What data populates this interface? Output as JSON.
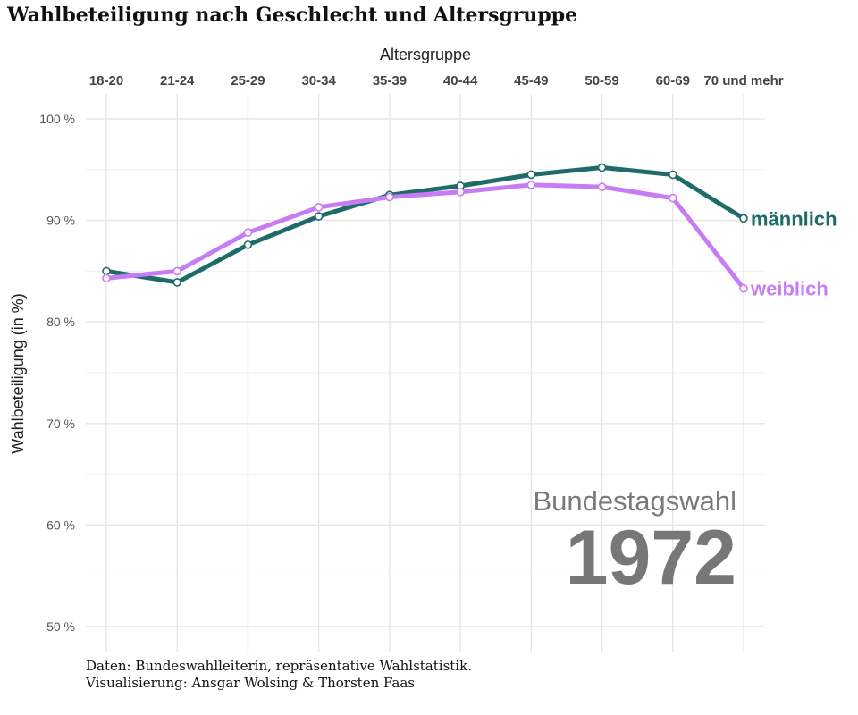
{
  "title": "Wahlbeteiligung nach Geschlecht und Altersgruppe",
  "caption": {
    "line1": "Daten: Bundeswahlleiterin, repräsentative Wahlstatistik.",
    "line2": "Visualisierung: Ansgar Wolsing & Thorsten Faas"
  },
  "chart_data": {
    "type": "line",
    "xlabel": "Altersgruppe",
    "ylabel": "Wahlbeteiligung (in %)",
    "x_axis_position": "top",
    "categories": [
      "18-20",
      "21-24",
      "25-29",
      "30-34",
      "35-39",
      "40-44",
      "45-49",
      "50-59",
      "60-69",
      "70 und mehr"
    ],
    "ylim": [
      48,
      101
    ],
    "yticks": [
      50,
      60,
      70,
      80,
      90,
      100
    ],
    "ytick_labels": [
      "50 %",
      "60 %",
      "70 %",
      "80 %",
      "90 %",
      "100 %"
    ],
    "grid": true,
    "legend": "direct labels at line ends",
    "series": [
      {
        "name": "männlich",
        "color": "#1f6b68",
        "values": [
          85.0,
          83.9,
          87.6,
          90.4,
          92.5,
          93.4,
          94.5,
          95.2,
          94.5,
          90.2
        ]
      },
      {
        "name": "weiblich",
        "color": "#c77cf6",
        "values": [
          84.3,
          85.0,
          88.8,
          91.3,
          92.3,
          92.8,
          93.5,
          93.3,
          92.2,
          83.3
        ]
      }
    ],
    "annotation": {
      "subtitle": "Bundestagswahl",
      "year": "1972"
    }
  }
}
